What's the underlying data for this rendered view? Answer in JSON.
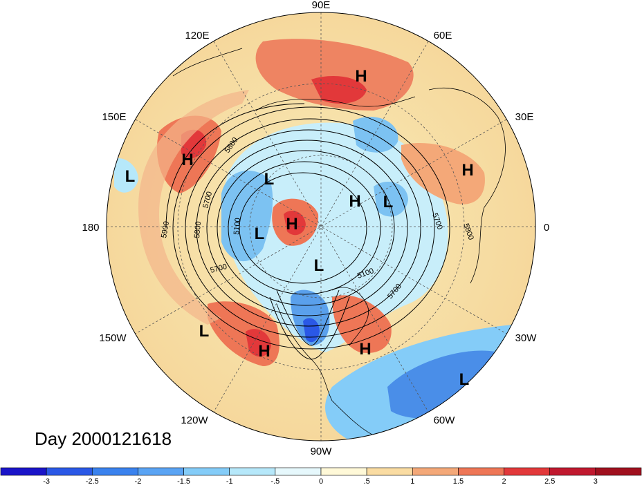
{
  "title": "Day 2000121618",
  "longitude_labels": [
    "90E",
    "60E",
    "30E",
    "0",
    "30W",
    "60W",
    "90W",
    "120W",
    "150W",
    "180",
    "150E",
    "120E"
  ],
  "contour_labels": [
    "5800",
    "5700",
    "5100",
    "5900",
    "5800",
    "5700",
    "5100",
    "5700",
    "5700",
    "5800"
  ],
  "pressure_centers": [
    {
      "label": "H",
      "region": "central Asia"
    },
    {
      "label": "H",
      "region": "western Pacific"
    },
    {
      "label": "L",
      "region": "central Pacific"
    },
    {
      "label": "L",
      "region": "eastern Siberia"
    },
    {
      "label": "H",
      "region": "Arctic"
    },
    {
      "label": "L",
      "region": "Arctic, Alaska side"
    },
    {
      "label": "H",
      "region": "northern Russia"
    },
    {
      "label": "L",
      "region": "Scandinavia"
    },
    {
      "label": "H",
      "region": "eastern Europe"
    },
    {
      "label": "L",
      "region": "Canadian Arctic"
    },
    {
      "label": "L",
      "region": "eastern Pacific"
    },
    {
      "label": "H",
      "region": "western North America"
    },
    {
      "label": "H",
      "region": "western Atlantic"
    },
    {
      "label": "L",
      "region": "central Atlantic"
    }
  ],
  "colorbar": {
    "ticks": [
      "-3",
      "-2.5",
      "-2",
      "-1.5",
      "-1",
      "-.5",
      "0",
      ".5",
      "1",
      "1.5",
      "2",
      "2.5",
      "3"
    ],
    "colors": [
      "#1a14c8",
      "#2a58e6",
      "#3a82ee",
      "#5aa4f4",
      "#84ccf8",
      "#b6e8fa",
      "#e6f8fc",
      "#fff9d8",
      "#fadca2",
      "#f4a878",
      "#ee7656",
      "#e2383a",
      "#c0182e",
      "#a0101e"
    ]
  },
  "palette": {
    "background_cold": "#b6e8fa",
    "background_warm": "#fadca2",
    "contour": "#000000",
    "graticule": "#555555"
  }
}
